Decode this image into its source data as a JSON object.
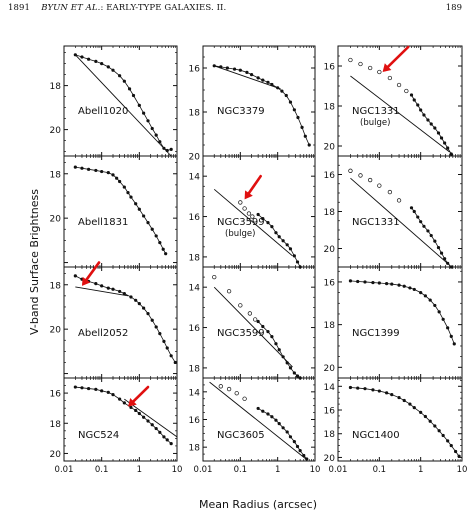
{
  "header": {
    "page_left": "1891",
    "authors": "BYUN ET AL.",
    "title_rest": ": EARLY-TYPE GALAXIES. II.",
    "page_right": "189"
  },
  "figure": {
    "ylabel": "V-band Surface Brightness",
    "xlabel": "Mean Radius (arcsec)",
    "x_ticks": [
      {
        "value": 0.01,
        "label": "0.01"
      },
      {
        "value": 0.1,
        "label": "0.1"
      },
      {
        "value": 1,
        "label": "1"
      },
      {
        "value": 10,
        "label": "10"
      }
    ]
  },
  "chart_data": [
    {
      "type": "scatter",
      "label": "Abell1020",
      "col": 0,
      "row": 0,
      "ylim": [
        16.2,
        21.2
      ],
      "yticks": [
        18,
        20
      ],
      "x": [
        0.02,
        0.03,
        0.045,
        0.07,
        0.1,
        0.15,
        0.2,
        0.3,
        0.4,
        0.55,
        0.7,
        1.0,
        1.3,
        1.7,
        2.2,
        2.8,
        3.5,
        4.5,
        5.5,
        7
      ],
      "y": [
        16.6,
        16.7,
        16.8,
        16.9,
        17.0,
        17.15,
        17.3,
        17.55,
        17.8,
        18.15,
        18.45,
        18.9,
        19.25,
        19.6,
        19.95,
        20.25,
        20.55,
        20.85,
        20.95,
        20.9
      ],
      "fit": {
        "x": [
          0.02,
          7
        ],
        "y": [
          16.6,
          21.2
        ]
      },
      "arrow": null
    },
    {
      "type": "scatter",
      "label": "Abell1831",
      "col": 0,
      "row": 1,
      "ylim": [
        17.2,
        22.2
      ],
      "yticks": [
        18,
        20
      ],
      "x": [
        0.02,
        0.03,
        0.045,
        0.07,
        0.1,
        0.15,
        0.2,
        0.25,
        0.3,
        0.4,
        0.5,
        0.6,
        0.8,
        1.0,
        1.3,
        1.7,
        2.2,
        2.8,
        3.5,
        4.3,
        5.0
      ],
      "y": [
        17.7,
        17.75,
        17.8,
        17.85,
        17.9,
        17.95,
        18.05,
        18.2,
        18.35,
        18.6,
        18.85,
        19.05,
        19.35,
        19.6,
        19.9,
        20.2,
        20.5,
        20.8,
        21.1,
        21.4,
        21.6
      ],
      "fit": null,
      "arrow": null
    },
    {
      "type": "scatter",
      "label": "Abell2052",
      "col": 0,
      "row": 2,
      "ylim": [
        17.2,
        22.2
      ],
      "yticks": [
        18,
        20
      ],
      "x": [
        0.02,
        0.03,
        0.045,
        0.07,
        0.1,
        0.15,
        0.2,
        0.3,
        0.4,
        0.6,
        0.8,
        1.0,
        1.3,
        1.7,
        2.2,
        2.8,
        3.5,
        4.5,
        5.5,
        7,
        9
      ],
      "y": [
        17.6,
        17.75,
        17.85,
        17.95,
        18.05,
        18.15,
        18.2,
        18.3,
        18.4,
        18.55,
        18.7,
        18.85,
        19.05,
        19.3,
        19.6,
        19.9,
        20.2,
        20.55,
        20.85,
        21.2,
        21.5
      ],
      "fit": {
        "x": [
          0.02,
          0.5
        ],
        "y": [
          18.1,
          18.5
        ]
      },
      "arrow": {
        "from": [
          0.085,
          17.0
        ],
        "to": [
          0.03,
          18.05
        ]
      }
    },
    {
      "type": "scatter",
      "label": "NGC524",
      "col": 0,
      "row": 3,
      "ylim": [
        15.0,
        20.5
      ],
      "yticks": [
        16,
        18,
        20
      ],
      "x": [
        0.02,
        0.03,
        0.045,
        0.07,
        0.1,
        0.15,
        0.2,
        0.3,
        0.4,
        0.6,
        0.8,
        1.0,
        1.3,
        1.7,
        2.2,
        2.8,
        3.5,
        4.5,
        5.5,
        7
      ],
      "y": [
        15.6,
        15.65,
        15.7,
        15.75,
        15.85,
        15.95,
        16.1,
        16.4,
        16.65,
        16.95,
        17.15,
        17.35,
        17.6,
        17.85,
        18.1,
        18.35,
        18.6,
        18.9,
        19.1,
        19.35
      ],
      "fit": {
        "x": [
          0.4,
          10
        ],
        "y": [
          16.4,
          18.9
        ]
      },
      "arrow": {
        "from": [
          1.7,
          15.6
        ],
        "to": [
          0.5,
          16.9
        ]
      }
    },
    {
      "type": "scatter",
      "label": "NGC3379",
      "col": 1,
      "row": 0,
      "ylim": [
        15.0,
        20.0
      ],
      "yticks": [
        16,
        18,
        20
      ],
      "x": [
        0.02,
        0.03,
        0.045,
        0.07,
        0.1,
        0.15,
        0.2,
        0.3,
        0.4,
        0.55,
        0.7,
        1.0,
        1.3,
        1.7,
        2.2,
        2.8,
        3.5,
        4.5,
        5.5,
        7
      ],
      "y": [
        15.9,
        15.95,
        16.0,
        16.05,
        16.1,
        16.2,
        16.3,
        16.45,
        16.55,
        16.65,
        16.75,
        16.9,
        17.05,
        17.25,
        17.55,
        17.9,
        18.25,
        18.7,
        19.1,
        19.5
      ],
      "fit": {
        "x": [
          0.02,
          1.2
        ],
        "y": [
          15.9,
          16.95
        ]
      },
      "arrow": null
    },
    {
      "type": "scatter",
      "label": "NGC3599",
      "sublabel": "(bulge)",
      "col": 1,
      "row": 1,
      "ylim": [
        13.0,
        18.5
      ],
      "yticks": [
        14,
        16,
        18
      ],
      "x": [
        0.3,
        0.4,
        0.55,
        0.7,
        0.9,
        1.1,
        1.4,
        1.8,
        2.2,
        2.8,
        3.4,
        4.0
      ],
      "y": [
        15.9,
        16.1,
        16.3,
        16.5,
        16.8,
        17.0,
        17.2,
        17.4,
        17.6,
        17.95,
        18.25,
        18.5
      ],
      "opens": {
        "x": [
          0.1,
          0.13,
          0.17,
          0.21
        ],
        "y": [
          15.3,
          15.6,
          15.85,
          16.0
        ]
      },
      "fit": {
        "x": [
          0.02,
          2.5
        ],
        "y": [
          14.65,
          17.95
        ]
      },
      "arrow": {
        "from": [
          0.35,
          14.0
        ],
        "to": [
          0.13,
          15.15
        ]
      }
    },
    {
      "type": "scatter",
      "label": "NGC3599",
      "col": 1,
      "row": 2,
      "ylim": [
        13.0,
        18.5
      ],
      "yticks": [
        14,
        16,
        18
      ],
      "x": [
        0.3,
        0.4,
        0.55,
        0.7,
        0.9,
        1.1,
        1.4,
        1.8,
        2.2,
        2.8,
        3.4,
        4.0
      ],
      "y": [
        15.7,
        15.95,
        16.2,
        16.45,
        16.8,
        17.1,
        17.45,
        17.75,
        18.0,
        18.25,
        18.4,
        18.5
      ],
      "opens": {
        "x": [
          0.02,
          0.05,
          0.1,
          0.18,
          0.25
        ],
        "y": [
          13.5,
          14.2,
          14.9,
          15.3,
          15.6
        ]
      },
      "fit": {
        "x": [
          0.02,
          2.5
        ],
        "y": [
          14.0,
          17.95
        ]
      },
      "arrow": null
    },
    {
      "type": "scatter",
      "label": "NGC3605",
      "col": 1,
      "row": 3,
      "ylim": [
        13.0,
        19.0
      ],
      "yticks": [
        14,
        16,
        18
      ],
      "x": [
        0.3,
        0.4,
        0.55,
        0.7,
        0.9,
        1.1,
        1.4,
        1.8,
        2.2,
        2.8,
        3.4,
        4.0,
        5.0,
        6.0
      ],
      "y": [
        15.2,
        15.4,
        15.6,
        15.8,
        16.05,
        16.3,
        16.6,
        16.9,
        17.25,
        17.6,
        17.95,
        18.25,
        18.6,
        18.85
      ],
      "opens": {
        "x": [
          0.03,
          0.05,
          0.08,
          0.13
        ],
        "y": [
          13.6,
          13.8,
          14.1,
          14.5
        ]
      },
      "fit": {
        "x": [
          0.015,
          6
        ],
        "y": [
          13.3,
          18.9
        ]
      },
      "arrow": null
    },
    {
      "type": "scatter",
      "label": "NGC1331",
      "sublabel": "(bulge)",
      "col": 2,
      "row": 0,
      "ylim": [
        15.0,
        20.5
      ],
      "yticks": [
        16,
        18,
        20
      ],
      "x": [
        0.6,
        0.7,
        0.85,
        1.0,
        1.2,
        1.5,
        1.8,
        2.2,
        2.7,
        3.2,
        3.8,
        4.5,
        5.5
      ],
      "y": [
        17.45,
        17.7,
        17.95,
        18.2,
        18.45,
        18.7,
        18.9,
        19.1,
        19.35,
        19.6,
        19.85,
        20.1,
        20.4
      ],
      "opens": {
        "x": [
          0.02,
          0.035,
          0.06,
          0.1,
          0.18,
          0.3,
          0.45
        ],
        "y": [
          15.7,
          15.9,
          16.1,
          16.3,
          16.6,
          16.95,
          17.25
        ]
      },
      "fit": {
        "x": [
          0.02,
          5
        ],
        "y": [
          16.5,
          20.3
        ]
      },
      "arrow": {
        "from": [
          0.5,
          15.05
        ],
        "to": [
          0.12,
          16.3
        ]
      }
    },
    {
      "type": "scatter",
      "label": "NGC1331",
      "col": 2,
      "row": 1,
      "ylim": [
        15.0,
        21.0
      ],
      "yticks": [
        16,
        18,
        20
      ],
      "x": [
        0.6,
        0.7,
        0.85,
        1.0,
        1.2,
        1.5,
        1.8,
        2.2,
        2.7,
        3.2,
        3.8,
        4.5,
        5.5
      ],
      "y": [
        17.8,
        18.0,
        18.3,
        18.55,
        18.8,
        19.05,
        19.3,
        19.6,
        19.95,
        20.25,
        20.55,
        20.8,
        21.0
      ],
      "opens": {
        "x": [
          0.02,
          0.035,
          0.06,
          0.1,
          0.18,
          0.3
        ],
        "y": [
          15.8,
          16.05,
          16.3,
          16.6,
          16.95,
          17.4
        ]
      },
      "fit": {
        "x": [
          0.02,
          5
        ],
        "y": [
          16.2,
          20.9
        ]
      },
      "arrow": null
    },
    {
      "type": "scatter",
      "label": "NGC1399",
      "col": 2,
      "row": 2,
      "ylim": [
        15.3,
        20.5
      ],
      "yticks": [
        16,
        18,
        20
      ],
      "x": [
        0.02,
        0.03,
        0.045,
        0.07,
        0.1,
        0.15,
        0.2,
        0.3,
        0.4,
        0.55,
        0.7,
        1.0,
        1.3,
        1.7,
        2.2,
        2.8,
        3.5,
        4.5,
        5.5,
        6.5
      ],
      "y": [
        15.95,
        15.98,
        16.0,
        16.03,
        16.05,
        16.08,
        16.1,
        16.15,
        16.2,
        16.28,
        16.35,
        16.5,
        16.65,
        16.85,
        17.1,
        17.4,
        17.75,
        18.15,
        18.55,
        18.9
      ],
      "fit": null,
      "arrow": null
    },
    {
      "type": "scatter",
      "label": "NGC1400",
      "col": 2,
      "row": 3,
      "ylim": [
        13.3,
        20.3
      ],
      "yticks": [
        14,
        16,
        18,
        20
      ],
      "x": [
        0.02,
        0.03,
        0.045,
        0.07,
        0.1,
        0.15,
        0.2,
        0.3,
        0.4,
        0.55,
        0.7,
        1.0,
        1.3,
        1.7,
        2.2,
        2.8,
        3.5,
        4.5,
        5.5,
        7,
        8.5
      ],
      "y": [
        14.1,
        14.15,
        14.2,
        14.3,
        14.4,
        14.55,
        14.7,
        14.95,
        15.2,
        15.5,
        15.8,
        16.2,
        16.55,
        16.95,
        17.35,
        17.75,
        18.15,
        18.6,
        19.0,
        19.5,
        19.9
      ],
      "fit": null,
      "arrow": null
    }
  ]
}
